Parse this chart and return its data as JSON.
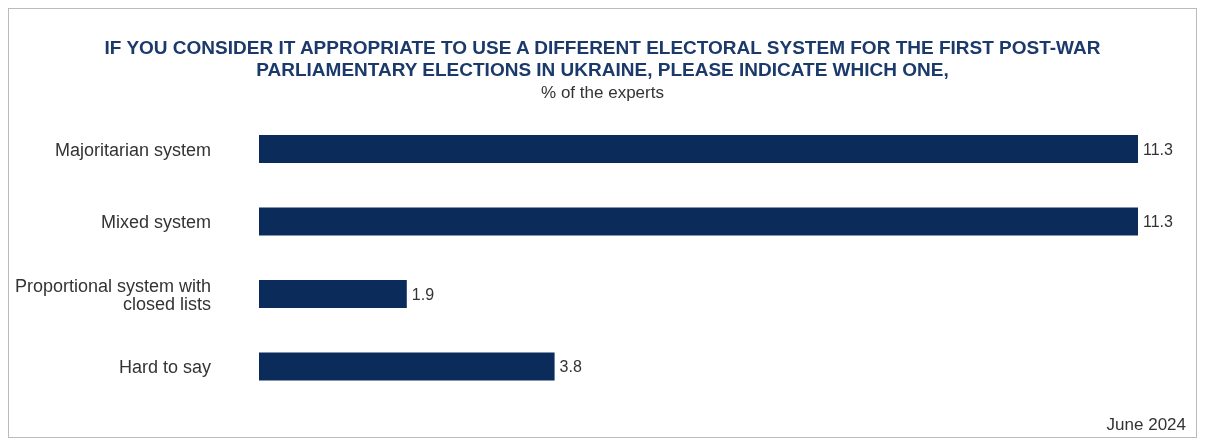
{
  "chart_data": {
    "type": "bar",
    "orientation": "horizontal",
    "title": "IF YOU CONSIDER IT APPROPRIATE TO USE A DIFFERENT ELECTORAL SYSTEM FOR THE FIRST POST-WAR PARLIAMENTARY ELECTIONS IN UKRAINE, PLEASE INDICATE WHICH ONE,",
    "subtitle": "% of the experts",
    "categories": [
      "Majoritarian system",
      "Mixed system",
      "Proportional system with closed lists",
      "Hard to say"
    ],
    "values": [
      11.3,
      11.3,
      1.9,
      3.8
    ],
    "color": "#0b2b5a",
    "data_labels": true,
    "annotations": [
      "June 2024"
    ]
  }
}
